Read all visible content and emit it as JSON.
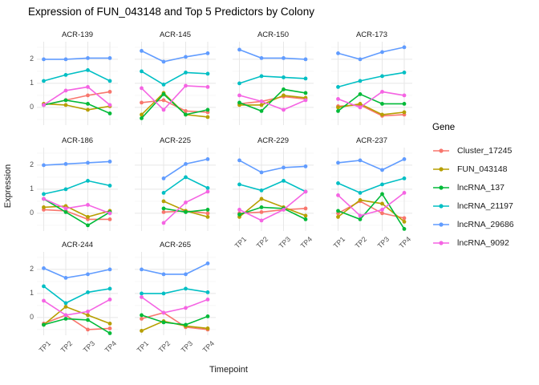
{
  "title": "Expression of FUN_043148 and Top 5 Predictors by Colony",
  "axes": {
    "x_label": "Timepoint",
    "y_label": "Expression",
    "x_ticks": [
      "TP1",
      "TP2",
      "TP3",
      "TP4"
    ],
    "y_ticks": [
      "0",
      "1",
      "2"
    ],
    "y_tick_values": [
      0,
      1,
      2
    ],
    "ylim": [
      -0.73,
      2.73
    ],
    "grid": "on"
  },
  "legend": {
    "title": "Gene",
    "position": "right",
    "entries": [
      {
        "label": "Cluster_17245",
        "color": "#F8766D"
      },
      {
        "label": "FUN_043148",
        "color": "#B79F00"
      },
      {
        "label": "lncRNA_137",
        "color": "#00BA38"
      },
      {
        "label": "lncRNA_21197",
        "color": "#00BFC4"
      },
      {
        "label": "lncRNA_29686",
        "color": "#619CFF"
      },
      {
        "label": "lncRNA_9092",
        "color": "#F564E3"
      }
    ]
  },
  "chart_data": {
    "type": "line",
    "x": [
      "TP1",
      "TP2",
      "TP3",
      "TP4"
    ],
    "facets": [
      {
        "name": "ACR-139",
        "series": [
          {
            "name": "Cluster_17245",
            "values": [
              0.1,
              0.3,
              0.5,
              0.65
            ]
          },
          {
            "name": "FUN_043148",
            "values": [
              0.15,
              0.1,
              -0.1,
              0.05
            ]
          },
          {
            "name": "lncRNA_137",
            "values": [
              0.1,
              0.3,
              0.15,
              -0.25
            ]
          },
          {
            "name": "lncRNA_21197",
            "values": [
              1.1,
              1.35,
              1.55,
              1.1
            ]
          },
          {
            "name": "lncRNA_29686",
            "values": [
              2.0,
              2.0,
              2.05,
              2.05
            ]
          },
          {
            "name": "lncRNA_9092",
            "values": [
              0.1,
              0.7,
              0.85,
              0.1
            ]
          }
        ]
      },
      {
        "name": "ACR-145",
        "series": [
          {
            "name": "Cluster_17245",
            "values": [
              0.2,
              0.3,
              -0.15,
              -0.2
            ]
          },
          {
            "name": "FUN_043148",
            "values": [
              -0.3,
              0.6,
              -0.3,
              -0.4
            ]
          },
          {
            "name": "lncRNA_137",
            "values": [
              -0.45,
              0.55,
              -0.3,
              -0.1
            ]
          },
          {
            "name": "lncRNA_21197",
            "values": [
              1.5,
              0.95,
              1.45,
              1.4
            ]
          },
          {
            "name": "lncRNA_29686",
            "values": [
              2.35,
              1.9,
              2.1,
              2.25
            ]
          },
          {
            "name": "lncRNA_9092",
            "values": [
              0.8,
              -0.1,
              0.9,
              0.85
            ]
          }
        ]
      },
      {
        "name": "ACR-150",
        "series": [
          {
            "name": "Cluster_17245",
            "values": [
              0.15,
              0.25,
              0.45,
              0.35
            ]
          },
          {
            "name": "FUN_043148",
            "values": [
              0.1,
              0.1,
              0.5,
              0.4
            ]
          },
          {
            "name": "lncRNA_137",
            "values": [
              0.2,
              -0.15,
              0.75,
              0.6
            ]
          },
          {
            "name": "lncRNA_21197",
            "values": [
              1.0,
              1.3,
              1.25,
              1.2
            ]
          },
          {
            "name": "lncRNA_29686",
            "values": [
              2.4,
              2.05,
              2.05,
              2.0
            ]
          },
          {
            "name": "lncRNA_9092",
            "values": [
              0.5,
              0.25,
              -0.1,
              0.3
            ]
          }
        ]
      },
      {
        "name": "ACR-173",
        "series": [
          {
            "name": "Cluster_17245",
            "values": [
              0.05,
              0.1,
              -0.35,
              -0.3
            ]
          },
          {
            "name": "FUN_043148",
            "values": [
              0.0,
              0.15,
              -0.3,
              -0.2
            ]
          },
          {
            "name": "lncRNA_137",
            "values": [
              -0.15,
              0.55,
              0.15,
              0.15
            ]
          },
          {
            "name": "lncRNA_21197",
            "values": [
              0.85,
              1.1,
              1.3,
              1.45
            ]
          },
          {
            "name": "lncRNA_29686",
            "values": [
              2.25,
              2.0,
              2.3,
              2.5
            ]
          },
          {
            "name": "lncRNA_9092",
            "values": [
              0.35,
              0.0,
              0.65,
              0.5
            ]
          }
        ]
      },
      {
        "name": "ACR-186",
        "series": [
          {
            "name": "Cluster_17245",
            "values": [
              0.15,
              0.1,
              -0.25,
              -0.25
            ]
          },
          {
            "name": "FUN_043148",
            "values": [
              0.25,
              0.3,
              -0.15,
              0.1
            ]
          },
          {
            "name": "lncRNA_137",
            "values": [
              0.6,
              0.05,
              -0.5,
              0.05
            ]
          },
          {
            "name": "lncRNA_21197",
            "values": [
              0.8,
              1.0,
              1.35,
              1.15
            ]
          },
          {
            "name": "lncRNA_29686",
            "values": [
              2.0,
              2.05,
              2.1,
              2.15
            ]
          },
          {
            "name": "lncRNA_9092",
            "values": [
              0.6,
              0.2,
              0.35,
              0.0
            ]
          }
        ]
      },
      {
        "name": "ACR-225",
        "series": [
          {
            "name": "Cluster_17245",
            "values": [
              null,
              0.05,
              0.1,
              0.0
            ]
          },
          {
            "name": "FUN_043148",
            "values": [
              null,
              0.5,
              0.1,
              -0.15
            ]
          },
          {
            "name": "lncRNA_137",
            "values": [
              null,
              0.2,
              0.05,
              0.15
            ]
          },
          {
            "name": "lncRNA_21197",
            "values": [
              null,
              0.85,
              1.5,
              1.05
            ]
          },
          {
            "name": "lncRNA_29686",
            "values": [
              null,
              1.45,
              2.05,
              2.25
            ]
          },
          {
            "name": "lncRNA_9092",
            "values": [
              null,
              -0.4,
              0.45,
              0.9
            ]
          }
        ]
      },
      {
        "name": "ACR-229",
        "series": [
          {
            "name": "Cluster_17245",
            "values": [
              0.0,
              0.05,
              0.15,
              0.2
            ]
          },
          {
            "name": "FUN_043148",
            "values": [
              -0.15,
              0.6,
              0.25,
              -0.1
            ]
          },
          {
            "name": "lncRNA_137",
            "values": [
              -0.05,
              0.25,
              0.2,
              -0.25
            ]
          },
          {
            "name": "lncRNA_21197",
            "values": [
              1.2,
              0.95,
              1.35,
              0.9
            ]
          },
          {
            "name": "lncRNA_29686",
            "values": [
              2.2,
              1.7,
              1.9,
              1.95
            ]
          },
          {
            "name": "lncRNA_9092",
            "values": [
              0.15,
              -0.3,
              0.15,
              0.9
            ]
          }
        ]
      },
      {
        "name": "ACR-237",
        "series": [
          {
            "name": "Cluster_17245",
            "values": [
              0.0,
              0.5,
              0.0,
              -0.2
            ]
          },
          {
            "name": "FUN_043148",
            "values": [
              -0.15,
              0.55,
              0.4,
              -0.35
            ]
          },
          {
            "name": "lncRNA_137",
            "values": [
              0.1,
              -0.25,
              0.8,
              -0.65
            ]
          },
          {
            "name": "lncRNA_21197",
            "values": [
              1.25,
              0.85,
              1.2,
              1.45
            ]
          },
          {
            "name": "lncRNA_29686",
            "values": [
              2.1,
              2.2,
              1.8,
              2.25
            ]
          },
          {
            "name": "lncRNA_9092",
            "values": [
              0.75,
              -0.1,
              0.15,
              0.85
            ]
          }
        ]
      },
      {
        "name": "ACR-244",
        "series": [
          {
            "name": "Cluster_17245",
            "values": [
              -0.25,
              0.1,
              -0.5,
              -0.45
            ]
          },
          {
            "name": "FUN_043148",
            "values": [
              -0.3,
              0.45,
              0.1,
              -0.25
            ]
          },
          {
            "name": "lncRNA_137",
            "values": [
              -0.3,
              -0.05,
              -0.1,
              -0.65
            ]
          },
          {
            "name": "lncRNA_21197",
            "values": [
              1.3,
              0.6,
              1.05,
              1.2
            ]
          },
          {
            "name": "lncRNA_29686",
            "values": [
              2.05,
              1.65,
              1.8,
              2.0
            ]
          },
          {
            "name": "lncRNA_9092",
            "values": [
              0.7,
              0.1,
              0.25,
              0.75
            ]
          }
        ]
      },
      {
        "name": "ACR-265",
        "series": [
          {
            "name": "Cluster_17245",
            "values": [
              -0.05,
              0.2,
              -0.4,
              -0.5
            ]
          },
          {
            "name": "FUN_043148",
            "values": [
              -0.55,
              -0.15,
              -0.35,
              -0.45
            ]
          },
          {
            "name": "lncRNA_137",
            "values": [
              0.1,
              -0.2,
              -0.3,
              0.05
            ]
          },
          {
            "name": "lncRNA_21197",
            "values": [
              1.0,
              1.0,
              1.2,
              1.05
            ]
          },
          {
            "name": "lncRNA_29686",
            "values": [
              2.0,
              1.8,
              1.8,
              2.25
            ]
          },
          {
            "name": "lncRNA_9092",
            "values": [
              0.85,
              0.2,
              0.4,
              0.75
            ]
          }
        ]
      }
    ]
  }
}
